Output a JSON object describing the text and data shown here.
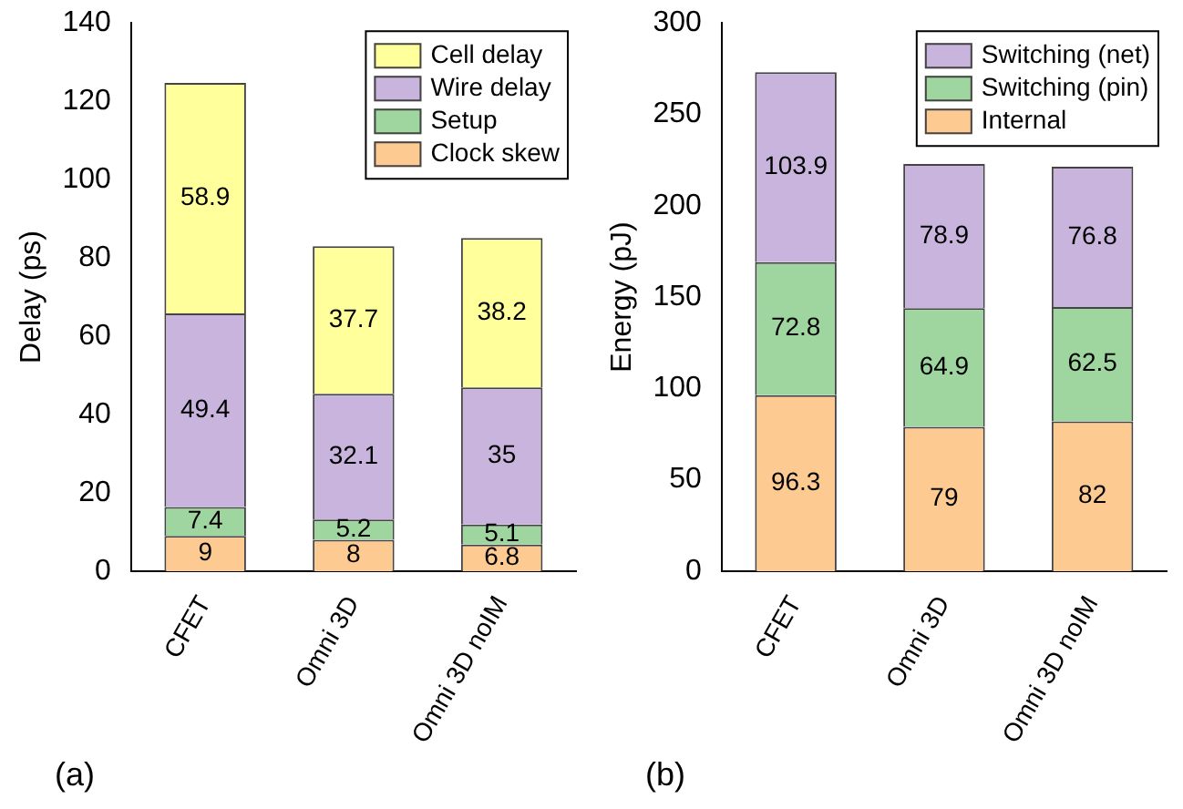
{
  "chart_data": [
    {
      "type": "bar",
      "stacked": true,
      "ylabel": "Delay (ps)",
      "categories": [
        "CFET",
        "Omni 3D",
        "Omni 3D noIM"
      ],
      "ylim": [
        0,
        140
      ],
      "yticks": [
        0,
        20,
        40,
        60,
        80,
        100,
        120,
        140
      ],
      "legend": "top right",
      "data_labels": true,
      "annotations": [
        "(a)"
      ],
      "series": [
        {
          "name": "Clock skew",
          "color": "#fdca92",
          "values": [
            9,
            8,
            6.8
          ]
        },
        {
          "name": "Setup",
          "color": "#9fd69f",
          "values": [
            7.4,
            5.2,
            5.1
          ]
        },
        {
          "name": "Wire delay",
          "color": "#c8b4dd",
          "values": [
            49.4,
            32.1,
            35
          ]
        },
        {
          "name": "Cell delay",
          "color": "#ffff9c",
          "values": [
            58.9,
            37.7,
            38.2
          ]
        }
      ]
    },
    {
      "type": "bar",
      "stacked": true,
      "ylabel": "Energy (pJ)",
      "categories": [
        "CFET",
        "Omni 3D",
        "Omni 3D noIM"
      ],
      "ylim": [
        0,
        300
      ],
      "yticks": [
        0,
        50,
        100,
        150,
        200,
        250,
        300
      ],
      "legend": "top right",
      "data_labels": true,
      "annotations": [
        "(b)"
      ],
      "series": [
        {
          "name": "Internal",
          "color": "#fdca92",
          "values": [
            96.3,
            79,
            82
          ]
        },
        {
          "name": "Switching (pin)",
          "color": "#9fd69f",
          "values": [
            72.8,
            64.9,
            62.5
          ]
        },
        {
          "name": "Switching (net)",
          "color": "#c8b4dd",
          "values": [
            103.9,
            78.9,
            76.8
          ]
        }
      ]
    }
  ]
}
